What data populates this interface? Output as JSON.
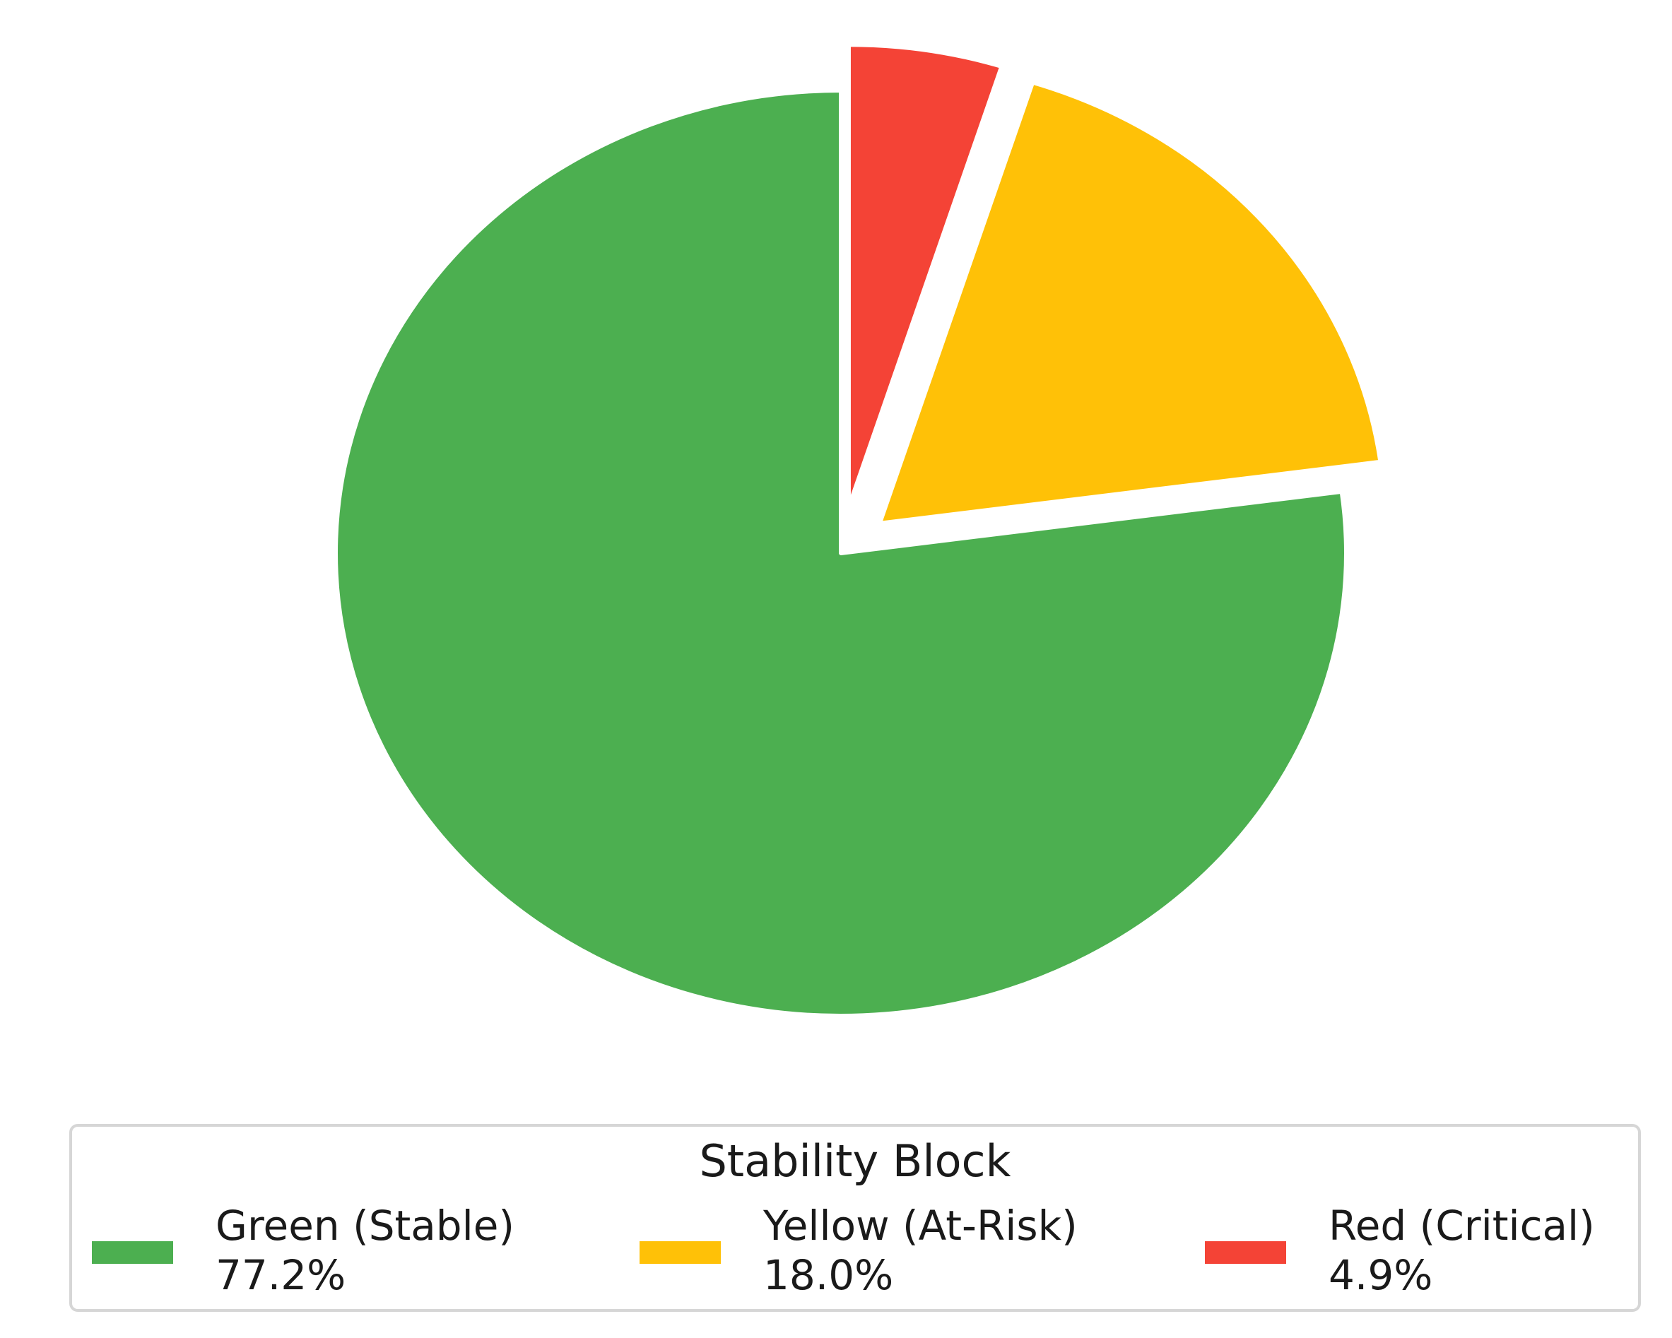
{
  "chart_data": {
    "type": "pie",
    "title": "",
    "legend": {
      "title": "Stability Block",
      "placement": "bottom-center"
    },
    "slices": [
      {
        "name": "Red (Critical)",
        "value": 4.9,
        "label": "4.9%",
        "color": "#f44336",
        "exploded": true
      },
      {
        "name": "Yellow (At-Risk)",
        "value": 18.0,
        "label": "18.0%",
        "color": "#ffc107",
        "exploded": true
      },
      {
        "name": "Green (Stable)",
        "value": 77.2,
        "label": "77.2%",
        "color": "#4caf50",
        "exploded": false
      }
    ],
    "legend_order": [
      "Green (Stable)",
      "Yellow (At-Risk)",
      "Red (Critical)"
    ],
    "start_angle_deg": 90,
    "direction": "clockwise"
  }
}
